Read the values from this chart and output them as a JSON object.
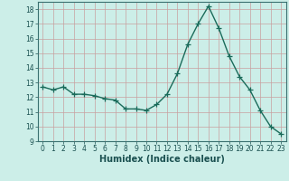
{
  "x": [
    0,
    1,
    2,
    3,
    4,
    5,
    6,
    7,
    8,
    9,
    10,
    11,
    12,
    13,
    14,
    15,
    16,
    17,
    18,
    19,
    20,
    21,
    22,
    23
  ],
  "y": [
    12.7,
    12.5,
    12.7,
    12.2,
    12.2,
    12.1,
    11.9,
    11.8,
    11.2,
    11.2,
    11.1,
    11.5,
    12.2,
    13.6,
    15.6,
    17.0,
    18.2,
    16.7,
    14.8,
    13.4,
    12.5,
    11.1,
    10.0,
    9.5
  ],
  "line_color": "#1a6b5a",
  "marker": "+",
  "markersize": 4,
  "linewidth": 1.0,
  "background_color": "#cceee8",
  "grid_color": "#aad4ce",
  "xlabel": "Humidex (Indice chaleur)",
  "xlim": [
    -0.5,
    23.5
  ],
  "ylim": [
    9,
    18.5
  ],
  "yticks": [
    9,
    10,
    11,
    12,
    13,
    14,
    15,
    16,
    17,
    18
  ],
  "xticks": [
    0,
    1,
    2,
    3,
    4,
    5,
    6,
    7,
    8,
    9,
    10,
    11,
    12,
    13,
    14,
    15,
    16,
    17,
    18,
    19,
    20,
    21,
    22,
    23
  ],
  "tick_fontsize": 5.5,
  "label_fontsize": 7.0
}
